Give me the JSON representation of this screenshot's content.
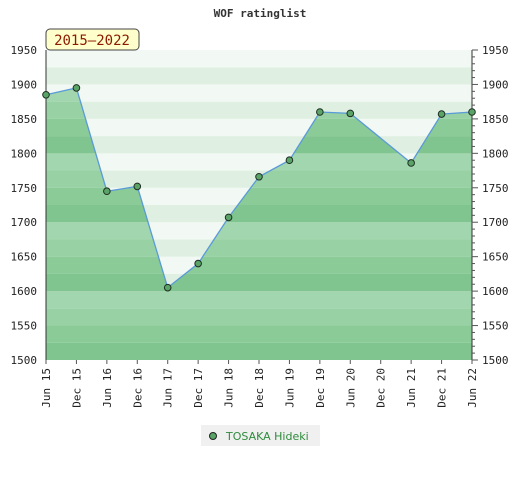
{
  "chart_data": {
    "type": "area",
    "title": "WOF ratinglist",
    "period_badge": "2015–2022",
    "ylim": [
      1500,
      1950
    ],
    "yticks": [
      1500,
      1550,
      1600,
      1650,
      1700,
      1750,
      1800,
      1850,
      1900,
      1950
    ],
    "categories": [
      "Jun 15",
      "Dec 15",
      "Jun 16",
      "Dec 16",
      "Jun 17",
      "Dec 17",
      "Jun 18",
      "Dec 18",
      "Jun 19",
      "Dec 19",
      "Jun 20",
      "Dec 20",
      "Jun 21",
      "Dec 21",
      "Jun 22"
    ],
    "series": [
      {
        "name": "TOSAKA Hideki",
        "values": [
          1885,
          1895,
          1745,
          1752,
          1605,
          1640,
          1707,
          1766,
          1790,
          1860,
          1858,
          null,
          1786,
          1857,
          1860
        ]
      }
    ],
    "legend_position": "bottom-center",
    "grid": true
  },
  "colors": {
    "line": "#5a9ad8",
    "marker": "#5aa468",
    "area_top": "#9fd6a9",
    "area_bottom": "#6fba82",
    "badge_bg": "#ffffcc"
  }
}
